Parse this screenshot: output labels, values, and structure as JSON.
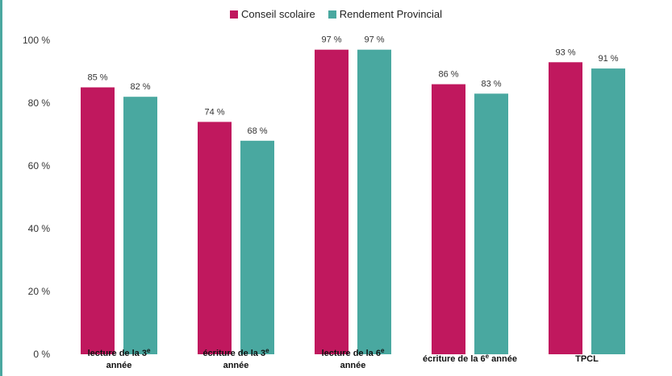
{
  "legend": {
    "series_1": "Conseil scolaire",
    "series_2": "Rendement Provincial"
  },
  "colors": {
    "series_1": "#c0185e",
    "series_2": "#49a8a0"
  },
  "chart_data": {
    "type": "bar",
    "categories": [
      [
        "lecture de la 3e",
        "année"
      ],
      [
        "écriture de la 3e",
        "année"
      ],
      [
        "lecture de la 6e",
        "année"
      ],
      [
        "écriture de la 6e année"
      ],
      [
        "TPCL"
      ]
    ],
    "series": [
      {
        "name": "Conseil scolaire",
        "values": [
          85,
          74,
          97,
          86,
          93
        ]
      },
      {
        "name": "Rendement Provincial",
        "values": [
          82,
          68,
          97,
          83,
          91
        ]
      }
    ],
    "value_format": "{v} %",
    "ylim": [
      0,
      100
    ],
    "yticks": [
      "0 %",
      "20 %",
      "40 %",
      "60 %",
      "80 %",
      "100 %"
    ],
    "legend_position": "top-center",
    "grid": false
  }
}
